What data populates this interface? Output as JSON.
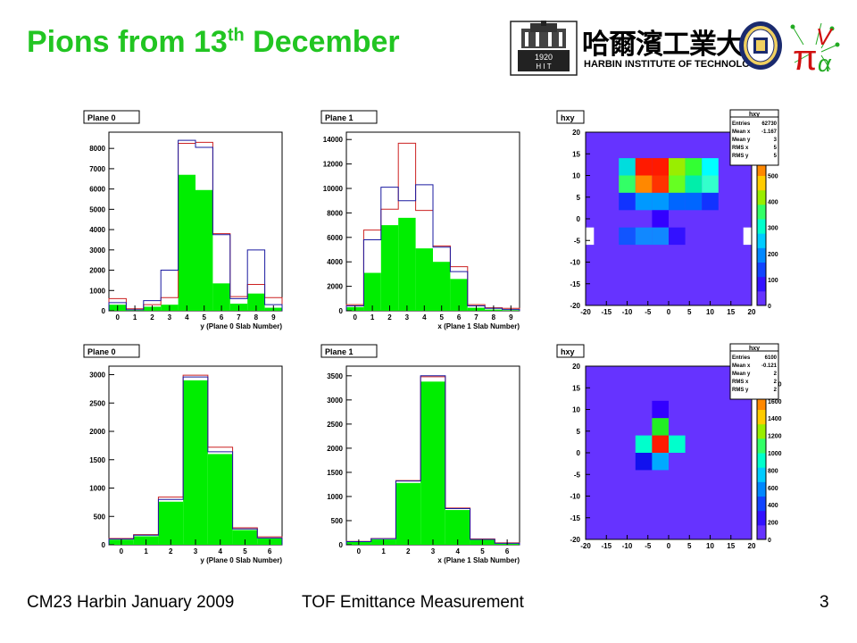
{
  "slide": {
    "title_main": "Pions from 13",
    "title_sup": "th",
    "title_end": " December",
    "footer_left": "CM23 Harbin January 2009",
    "footer_center": "TOF Emittance Measurement",
    "footer_right": "3"
  },
  "logos": {
    "hit_chinese": "哈爾濱工業大學",
    "hit_english": "HARBIN INSTITUTE OF TECHNOLOGY",
    "hit_seal_year": "1920",
    "hit_seal_letters": "H I T",
    "mice_text": "πV"
  },
  "colors": {
    "green": "#00ee00",
    "red": "#cc2222",
    "blue": "#1a1aa0",
    "title": "#22c522",
    "palette_bg": "#6633ff"
  },
  "chart_data": [
    {
      "type": "bar",
      "panel_label": "Plane 0",
      "xlabel": "y (Plane 0 Slab Number)",
      "ylim": [
        0,
        8800
      ],
      "yticks": [
        0,
        1000,
        2000,
        3000,
        4000,
        5000,
        6000,
        7000,
        8000
      ],
      "ytick_labels": [
        "0",
        "1000",
        "2000",
        "3000",
        "4000",
        "5000",
        "6000",
        "7000",
        "8000"
      ],
      "xlim": [
        -0.5,
        9.5
      ],
      "xticks": [
        0,
        1,
        2,
        3,
        4,
        5,
        6,
        7,
        8,
        9
      ],
      "xtick_labels": [
        "0",
        "1",
        "2",
        "3",
        "4",
        "5",
        "6",
        "7",
        "8",
        "9"
      ],
      "bin_width": 1,
      "bin_lefts": [
        -0.5,
        0.5,
        1.5,
        2.5,
        3.5,
        4.5,
        5.5,
        6.5,
        7.5,
        8.5
      ],
      "series": [
        {
          "values": [
            600,
            100,
            300,
            650,
            8250,
            8300,
            3800,
            700,
            1300,
            650
          ]
        },
        {
          "values": [
            400,
            50,
            500,
            2000,
            8400,
            8050,
            3750,
            600,
            3000,
            300
          ]
        },
        {
          "values": [
            300,
            30,
            200,
            300,
            6700,
            5950,
            1350,
            350,
            850,
            150
          ]
        }
      ]
    },
    {
      "type": "bar",
      "panel_label": "Plane 1",
      "xlabel": "x (Plane 1 Slab Number)",
      "ylim": [
        0,
        14600
      ],
      "yticks": [
        0,
        2000,
        4000,
        6000,
        8000,
        10000,
        12000,
        14000
      ],
      "ytick_labels": [
        "0",
        "2000",
        "4000",
        "6000",
        "8000",
        "10000",
        "12000",
        "14000"
      ],
      "xlim": [
        -0.5,
        9.5
      ],
      "xticks": [
        0,
        1,
        2,
        3,
        4,
        5,
        6,
        7,
        8,
        9
      ],
      "xtick_labels": [
        "0",
        "1",
        "2",
        "3",
        "4",
        "5",
        "6",
        "7",
        "8",
        "9"
      ],
      "bin_width": 1,
      "bin_lefts": [
        -0.5,
        0.5,
        1.5,
        2.5,
        3.5,
        4.5,
        5.5,
        6.5,
        7.5,
        8.5
      ],
      "series": [
        {
          "values": [
            500,
            6600,
            8300,
            13700,
            8200,
            5300,
            3600,
            500,
            250,
            200
          ]
        },
        {
          "values": [
            400,
            5800,
            10100,
            9000,
            10300,
            5200,
            3200,
            400,
            200,
            100
          ]
        },
        {
          "values": [
            300,
            3100,
            7000,
            7600,
            5100,
            4000,
            2600,
            250,
            100,
            50
          ]
        }
      ]
    },
    {
      "type": "heatmap",
      "panel_label": "hxy",
      "xlim": [
        -20,
        20
      ],
      "ylim": [
        -20,
        20
      ],
      "xticks": [
        -20,
        -15,
        -10,
        -5,
        0,
        5,
        10,
        15,
        20
      ],
      "yticks": [
        -20,
        -15,
        -10,
        -5,
        0,
        5,
        10,
        15,
        20
      ],
      "x_edges": [
        -16,
        -12,
        -8,
        -4,
        0,
        4,
        8,
        12,
        16
      ],
      "y_edges": [
        -10,
        -6,
        -2,
        2,
        6,
        10,
        14,
        18
      ],
      "cell_colors": [
        [
          "#6633ff",
          "#6633ff",
          "#6633ff",
          "#6633ff",
          "#6633ff",
          "#6633ff",
          "#6633ff",
          "#6633ff"
        ],
        [
          "#6633ff",
          "#00dddd",
          "#ff1a00",
          "#ff1a00",
          "#99ee00",
          "#33ff33",
          "#00ffff",
          "#6633ff"
        ],
        [
          "#6633ff",
          "#33ff66",
          "#ff8800",
          "#ff3300",
          "#66ff22",
          "#00eeaa",
          "#33ffcc",
          "#6633ff"
        ],
        [
          "#6633ff",
          "#1133ff",
          "#0099ff",
          "#0099ff",
          "#0066ff",
          "#0066ff",
          "#1133ff",
          "#6633ff"
        ],
        [
          "#6633ff",
          "#6633ff",
          "#6633ff",
          "#3300ff",
          "#6633ff",
          "#6633ff",
          "#6633ff",
          "#6633ff"
        ],
        [
          "#6633ff",
          "#1155ff",
          "#1188ff",
          "#1188ff",
          "#3311ff",
          "#6633ff",
          "#6633ff",
          "#6633ff"
        ],
        [
          "#6633ff",
          "#6633ff",
          "#6633ff",
          "#6633ff",
          "#6633ff",
          "#6633ff",
          "#6633ff",
          "#6633ff"
        ]
      ],
      "background": "#6633ff",
      "white_notches": [
        [
          -20,
          -2
        ],
        [
          18,
          -2
        ]
      ],
      "stats": {
        "title": "hxy",
        "rows": [
          [
            "Entries",
            "62730"
          ],
          [
            "Mean x",
            "-1.167"
          ],
          [
            "Mean y",
            "3"
          ],
          [
            "RMS x",
            "5"
          ],
          [
            "RMS y",
            "5"
          ]
        ]
      },
      "colorbar_labels": [
        "0",
        "100",
        "200",
        "300",
        "400",
        "500",
        "600"
      ]
    },
    {
      "type": "bar",
      "panel_label": "Plane 0",
      "xlabel": "y (Plane 0 Slab Number)",
      "ylim": [
        0,
        3150
      ],
      "yticks": [
        0,
        500,
        1000,
        1500,
        2000,
        2500,
        3000
      ],
      "ytick_labels": [
        "0",
        "500",
        "1000",
        "1500",
        "2000",
        "2500",
        "3000"
      ],
      "xlim": [
        -0.5,
        6.5
      ],
      "xticks": [
        0,
        1,
        2,
        3,
        4,
        5,
        6
      ],
      "xtick_labels": [
        "0",
        "1",
        "2",
        "3",
        "4",
        "5",
        "6"
      ],
      "bin_width": 1,
      "bin_lefts": [
        -0.5,
        0.5,
        1.5,
        2.5,
        3.5,
        4.5,
        5.5
      ],
      "series": [
        {
          "values": [
            110,
            180,
            840,
            2990,
            1720,
            300,
            140
          ]
        },
        {
          "values": [
            100,
            170,
            800,
            2960,
            1640,
            280,
            120
          ]
        },
        {
          "values": [
            90,
            150,
            760,
            2900,
            1600,
            260,
            110
          ]
        }
      ]
    },
    {
      "type": "bar",
      "panel_label": "Plane 1",
      "xlabel": "x (Plane 1 Slab Number)",
      "ylim": [
        0,
        3700
      ],
      "yticks": [
        0,
        500,
        1000,
        1500,
        2000,
        2500,
        3000,
        3500
      ],
      "ytick_labels": [
        "0",
        "500",
        "1000",
        "1500",
        "2000",
        "2500",
        "3000",
        "3500"
      ],
      "xlim": [
        -0.5,
        6.5
      ],
      "xticks": [
        0,
        1,
        2,
        3,
        4,
        5,
        6
      ],
      "xtick_labels": [
        "0",
        "1",
        "2",
        "3",
        "4",
        "5",
        "6"
      ],
      "bin_width": 1,
      "bin_lefts": [
        -0.5,
        0.5,
        1.5,
        2.5,
        3.5,
        4.5,
        5.5
      ],
      "series": [
        {
          "values": [
            70,
            130,
            1330,
            3480,
            760,
            120,
            40
          ]
        },
        {
          "values": [
            65,
            125,
            1320,
            3500,
            750,
            110,
            30
          ]
        },
        {
          "values": [
            60,
            110,
            1280,
            3380,
            720,
            100,
            20
          ]
        }
      ]
    },
    {
      "type": "heatmap",
      "panel_label": "hxy",
      "xlim": [
        -20,
        20
      ],
      "ylim": [
        -20,
        20
      ],
      "xticks": [
        -20,
        -15,
        -10,
        -5,
        0,
        5,
        10,
        15,
        20
      ],
      "yticks": [
        -20,
        -15,
        -10,
        -5,
        0,
        5,
        10,
        15,
        20
      ],
      "x_edges": [
        -8,
        -4,
        0,
        4,
        8
      ],
      "y_edges": [
        -8,
        -4,
        0,
        4,
        8,
        12
      ],
      "cell_colors": [
        [
          "#6633ff",
          "#3300ff",
          "#6633ff",
          "#6633ff"
        ],
        [
          "#6633ff",
          "#22ee22",
          "#6633ff",
          "#6633ff"
        ],
        [
          "#00ffcc",
          "#ff1a00",
          "#00ffcc",
          "#6633ff"
        ],
        [
          "#1111ee",
          "#00aaff",
          "#6633ff",
          "#6633ff"
        ],
        [
          "#6633ff",
          "#6633ff",
          "#6633ff",
          "#6633ff"
        ]
      ],
      "background": "#6633ff",
      "white_notches": [
        [
          -20,
          -20
        ],
        [
          16,
          -20
        ]
      ],
      "stats": {
        "title": "hxy",
        "rows": [
          [
            "Entries",
            "6100"
          ],
          [
            "Mean x",
            "-0.121"
          ],
          [
            "Mean y",
            "2"
          ],
          [
            "RMS x",
            "2"
          ],
          [
            "RMS y",
            "2"
          ]
        ]
      },
      "colorbar_labels": [
        "0",
        "200",
        "400",
        "600",
        "800",
        "1000",
        "1200",
        "1400",
        "1600",
        "1800"
      ]
    }
  ]
}
